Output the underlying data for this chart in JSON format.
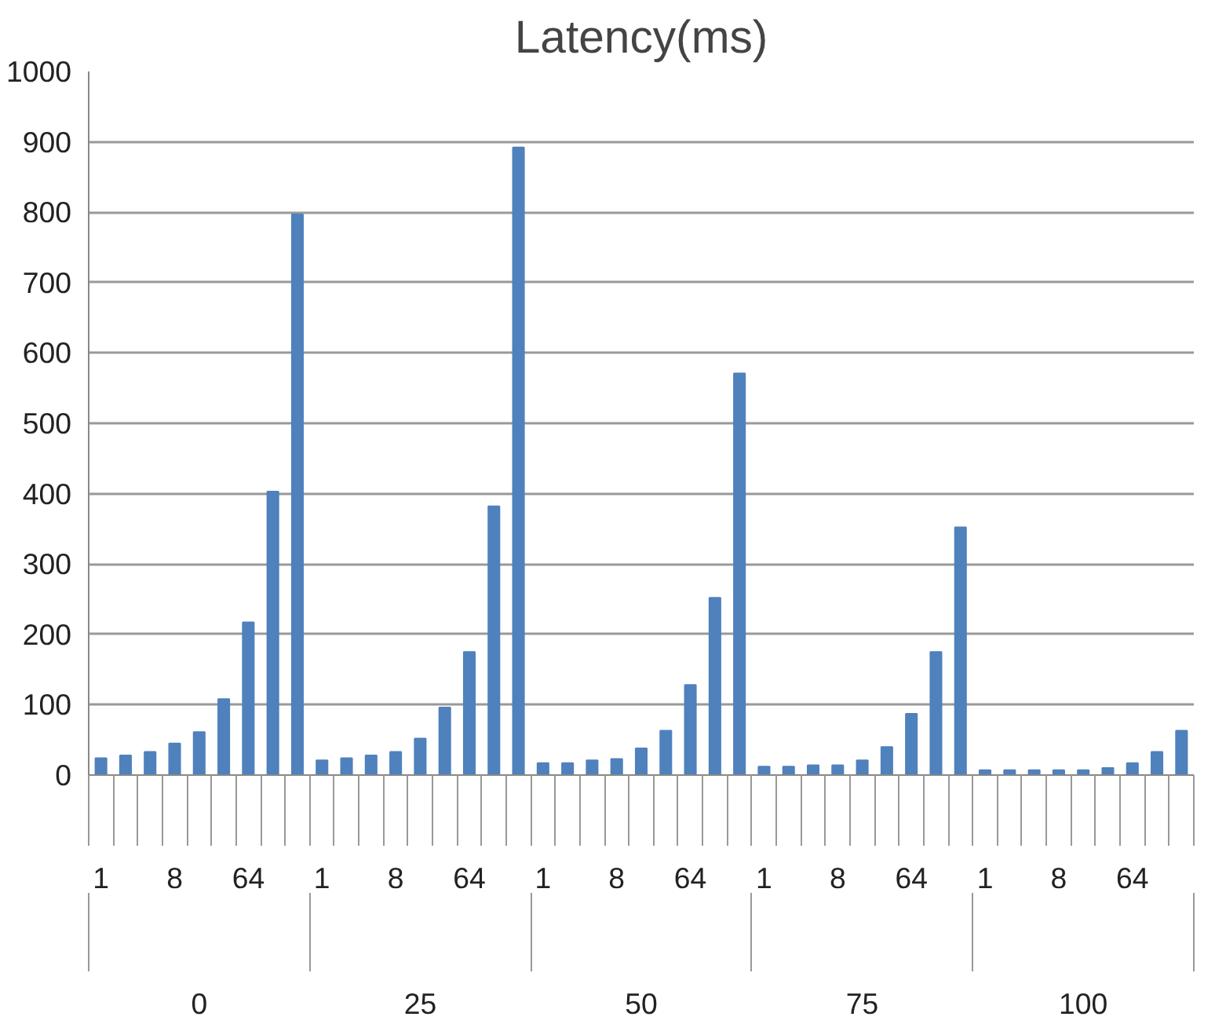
{
  "chart_data": {
    "type": "bar",
    "title": "Latency(ms)",
    "categories": [
      "1",
      null,
      null,
      "8",
      null,
      null,
      "64",
      null,
      null,
      "1",
      null,
      null,
      "8",
      null,
      null,
      "64",
      null,
      null,
      "1",
      null,
      null,
      "8",
      null,
      null,
      "64",
      null,
      null,
      "1",
      null,
      null,
      "8",
      null,
      null,
      "64",
      null,
      null,
      "1",
      null,
      null,
      "8",
      null,
      null,
      "64",
      null,
      null
    ],
    "values": [
      24,
      28,
      33,
      45,
      61,
      108,
      217,
      403,
      797,
      21,
      24,
      28,
      33,
      52,
      96,
      175,
      382,
      892,
      17,
      17,
      21,
      23,
      38,
      63,
      128,
      252,
      571,
      12,
      12,
      14,
      14,
      21,
      40,
      87,
      175,
      352,
      7,
      7,
      7,
      7,
      7,
      10,
      17,
      33,
      63
    ],
    "color": "#4f81bd",
    "annotations": [
      "0",
      "25",
      "50",
      "75",
      "100"
    ],
    "ylim": [
      0,
      1000
    ],
    "yticks": [
      0,
      100,
      200,
      300,
      400,
      500,
      600,
      700,
      800,
      900,
      1000
    ],
    "grid": "y"
  }
}
